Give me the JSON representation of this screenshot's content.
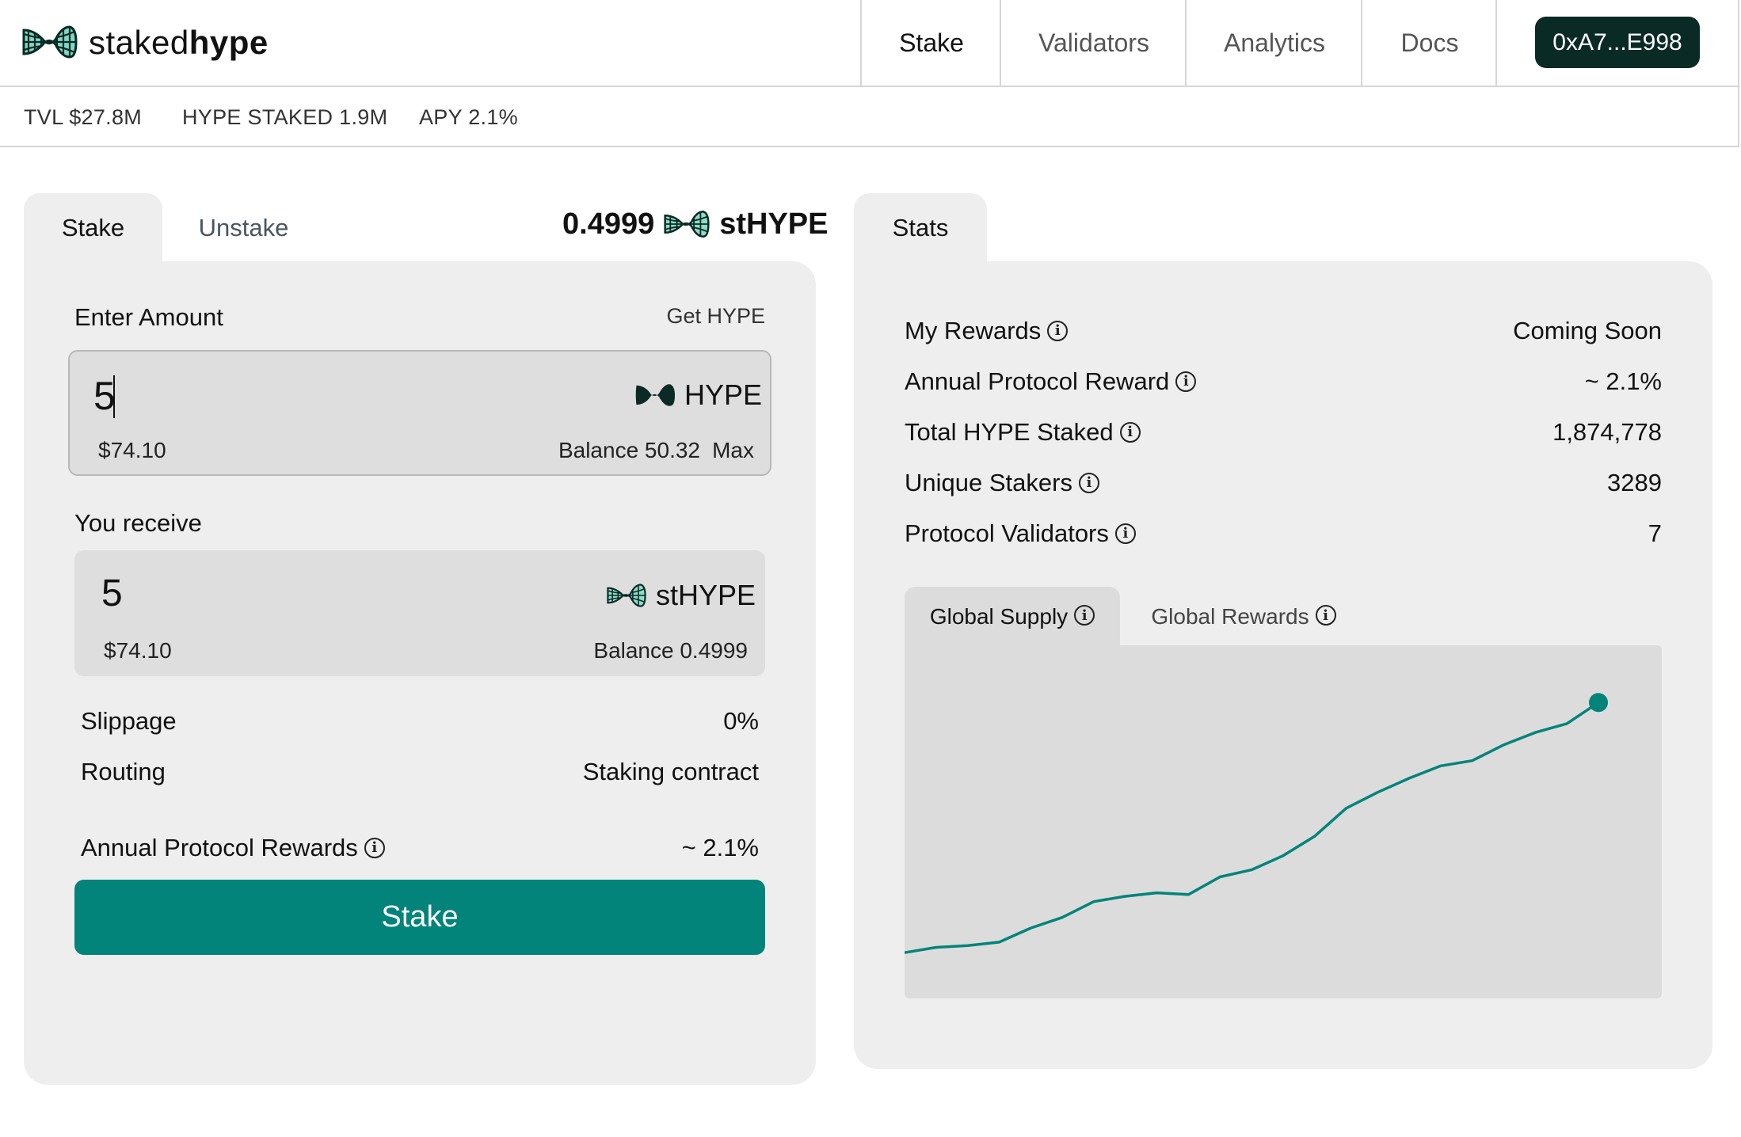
{
  "header": {
    "logo": {
      "text_light": "staked",
      "text_bold": "hype",
      "icon": "stakedhype-logo-icon"
    },
    "nav": [
      {
        "label": "Stake",
        "active": true
      },
      {
        "label": "Validators",
        "active": false
      },
      {
        "label": "Analytics",
        "active": false
      },
      {
        "label": "Docs",
        "active": false
      }
    ],
    "wallet": "0xA7...E998"
  },
  "strip": {
    "tvl": "TVL $27.8M",
    "staked": "HYPE STAKED 1.9M",
    "apy": "APY 2.1%"
  },
  "stake_panel": {
    "tabs": {
      "stake": "Stake",
      "unstake": "Unstake"
    },
    "sthype_balance": "0.4999",
    "sthype_symbol": "stHYPE",
    "enter_amount_label": "Enter Amount",
    "get_hype_link": "Get HYPE",
    "input": {
      "value": "5",
      "usd": "$74.10",
      "token": "HYPE",
      "balance": "Balance 50.32",
      "max": "Max"
    },
    "you_receive_label": "You receive",
    "receive": {
      "value": "5",
      "usd": "$74.10",
      "token": "stHYPE",
      "balance": "Balance 0.4999"
    },
    "rows": [
      {
        "label": "Slippage",
        "value": "0%"
      },
      {
        "label": "Routing",
        "value": "Staking contract"
      }
    ],
    "annual_rewards": {
      "label": "Annual Protocol Rewards",
      "value": "~ 2.1%"
    },
    "stake_button": "Stake"
  },
  "stats_panel": {
    "tab": "Stats",
    "items": [
      {
        "label": "My Rewards",
        "value": "Coming Soon"
      },
      {
        "label": "Annual Protocol Reward",
        "value": "~ 2.1%"
      },
      {
        "label": "Total HYPE Staked",
        "value": "1,874,778"
      },
      {
        "label": "Unique Stakers",
        "value": "3289"
      },
      {
        "label": "Protocol Validators",
        "value": "7"
      }
    ],
    "chart_tabs": [
      {
        "label": "Global Supply",
        "active": true
      },
      {
        "label": "Global Rewards",
        "active": false
      }
    ]
  },
  "colors": {
    "accent": "#03847a",
    "wallet_bg": "#0a2a26",
    "panel_bg": "#eeeeee",
    "chart_bg": "#dcdcdc"
  },
  "chart_data": {
    "type": "line",
    "title": "",
    "xlabel": "",
    "ylabel": "",
    "series": [
      {
        "values": [
          8,
          11,
          12,
          14,
          22,
          28,
          37,
          40,
          42,
          41,
          51,
          55,
          63,
          74,
          90,
          99,
          107,
          114,
          117,
          126,
          133,
          138,
          150
        ]
      }
    ],
    "ylim": [
      0,
      160
    ],
    "grid": false,
    "legend": "none",
    "end_marker": true
  }
}
